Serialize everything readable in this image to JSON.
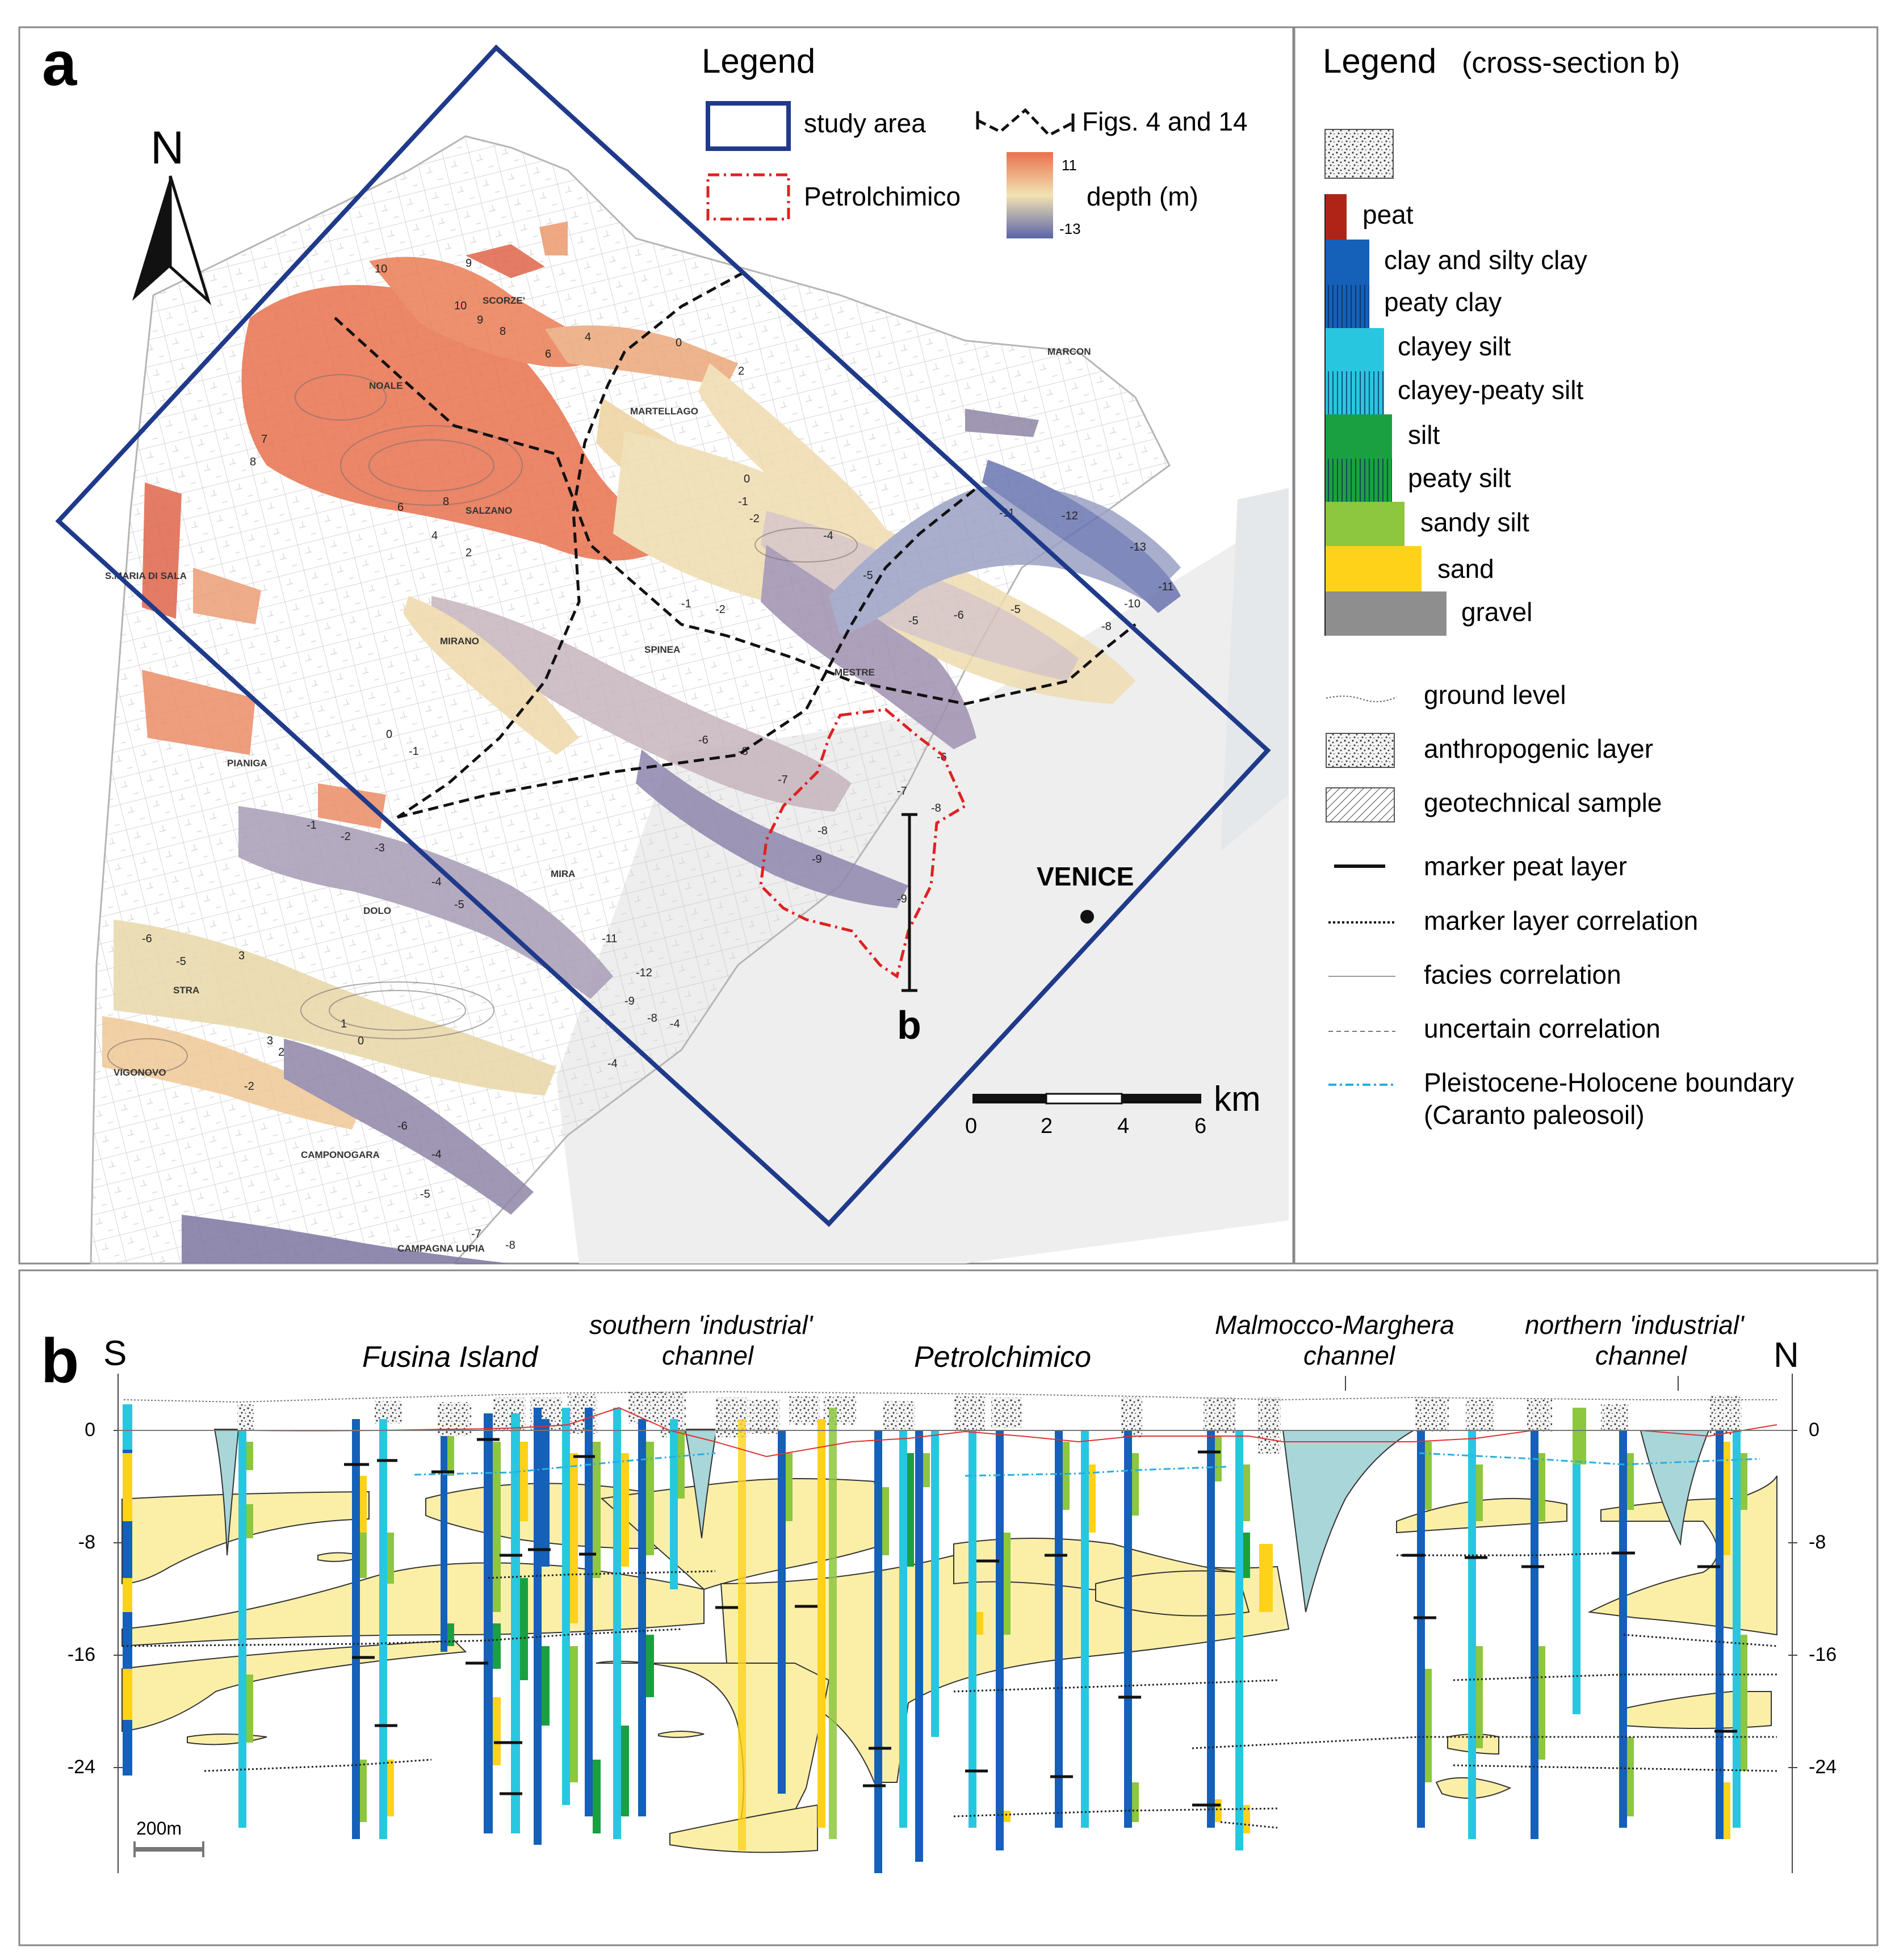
{
  "panel_a": {
    "label": "a",
    "north": "N",
    "legend": {
      "title": "Legend",
      "study_area": "study area",
      "figs": "Figs. 4 and 14",
      "petrolchimico": "Petrolchimico",
      "depth": "depth (m)",
      "depth_max": "11",
      "depth_min": "-13",
      "colors": {
        "study_area": "#1f3a8a",
        "petrolchimico": "#e02020",
        "depth_top": "#e8714d",
        "depth_mid": "#f3e3b3",
        "depth_bottom": "#5a64a8"
      }
    },
    "places": [
      "SCORZE'",
      "NOALE",
      "MARTELLAGO",
      "MARCON",
      "SALZANO",
      "S.MARIA DI SALA",
      "MIRANO",
      "SPINEA",
      "MESTRE",
      "PIANIGA",
      "MIRA",
      "DOLO",
      "STRA",
      "VIGONOVO",
      "CAMPONOGARA",
      "CAMPAGNA LUPIA"
    ],
    "venice": "VENICE",
    "section_label": "b",
    "scale": {
      "unit": "km",
      "ticks": [
        "0",
        "2",
        "4",
        "6"
      ]
    }
  },
  "legend_b": {
    "title": "Legend",
    "subtitle": "(cross-section b)",
    "lithology": [
      {
        "label": "peat",
        "color": "#b02418",
        "hatch": false
      },
      {
        "label": "clay and silty clay",
        "color": "#1560b8",
        "hatch": false
      },
      {
        "label": "peaty clay",
        "color": "#1560b8",
        "hatch": true
      },
      {
        "label": "clayey silt",
        "color": "#29c6e0",
        "hatch": false
      },
      {
        "label": "clayey-peaty silt",
        "color": "#29c6e0",
        "hatch": true
      },
      {
        "label": "silt",
        "color": "#1aa040",
        "hatch": false
      },
      {
        "label": "peaty silt",
        "color": "#1aa040",
        "hatch": true
      },
      {
        "label": "sandy silt",
        "color": "#8dc63f",
        "hatch": false
      },
      {
        "label": "sand",
        "color": "#ffd21a",
        "hatch": false
      },
      {
        "label": "gravel",
        "color": "#8e8e8e",
        "hatch": false
      }
    ],
    "symbols": [
      "ground level",
      "anthropogenic layer",
      "geotechnical sample",
      "marker peat layer",
      "marker layer correlation",
      "facies correlation",
      "uncertain correlation",
      "Pleistocene-Holocene boundary",
      "(Caranto paleosoil)"
    ]
  },
  "panel_b": {
    "label": "b",
    "left_end": "S",
    "right_end": "N",
    "titles": {
      "fusina": "Fusina Island",
      "southern_1": "southern 'industrial'",
      "southern_2": "channel",
      "petrolchimico": "Petrolchimico",
      "malmocco_1": "Malmocco-Marghera",
      "malmocco_2": "channel",
      "northern_1": "northern 'industrial'",
      "northern_2": "channel"
    },
    "depth_ticks": [
      "0",
      "-8",
      "-16",
      "-24"
    ],
    "scale_bar": "200m"
  }
}
